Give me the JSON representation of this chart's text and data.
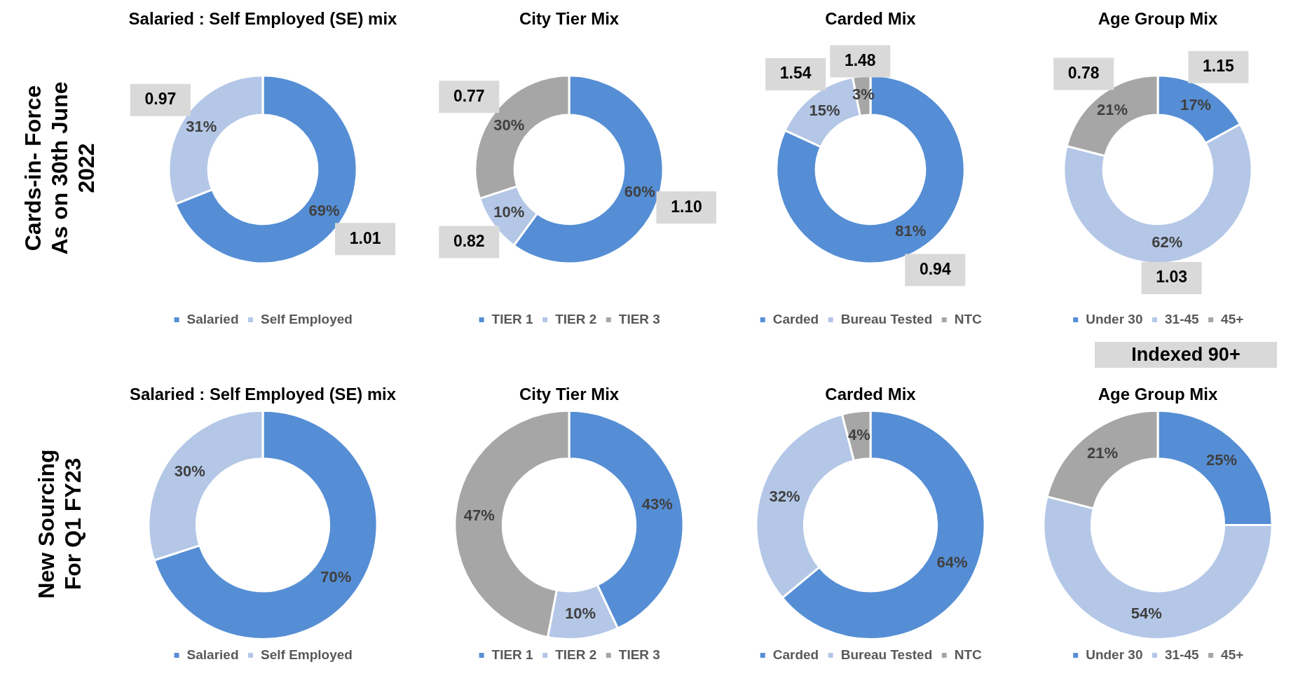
{
  "chart_data": [
    {
      "type": "donut",
      "title": "Salaried : Self Employed (SE) mix",
      "ylabel": "Cards-in- Force As on 30th June 2022",
      "categories": [
        "Salaried",
        "Self Employed"
      ],
      "values": [
        69,
        31
      ],
      "colors": [
        "#558ed5",
        "#b4c7e7"
      ],
      "value_labels": [
        "69%",
        "31%"
      ],
      "legend": "bottom",
      "annotations": [
        "1.01",
        "0.97"
      ]
    },
    {
      "type": "donut",
      "title": "City Tier Mix",
      "categories": [
        "TIER 1",
        "TIER 2",
        "TIER 3"
      ],
      "values": [
        60,
        10,
        30
      ],
      "colors": [
        "#558ed5",
        "#b4c7e7",
        "#a6a6a6"
      ],
      "value_labels": [
        "60%",
        "10%",
        "30%"
      ],
      "legend": "bottom",
      "annotations": [
        "1.10",
        "0.82",
        "0.77"
      ]
    },
    {
      "type": "donut",
      "title": "Carded Mix",
      "categories": [
        "Carded",
        "Bureau Tested",
        "NTC"
      ],
      "values": [
        81,
        15,
        3
      ],
      "colors": [
        "#558ed5",
        "#b4c7e7",
        "#a6a6a6"
      ],
      "value_labels": [
        "81%",
        "15%",
        "3%"
      ],
      "legend": "bottom",
      "annotations": [
        "0.94",
        "1.54",
        "1.48"
      ]
    },
    {
      "type": "donut",
      "title": "Age Group Mix",
      "subtitle": "Indexed 90+",
      "categories": [
        "Under 30",
        "31-45",
        "45+"
      ],
      "values": [
        17,
        62,
        21
      ],
      "colors": [
        "#558ed5",
        "#b4c7e7",
        "#a6a6a6"
      ],
      "value_labels": [
        "17%",
        "62%",
        "21%"
      ],
      "legend": "bottom",
      "annotations": [
        "1.15",
        "1.03",
        "0.78"
      ]
    },
    {
      "type": "donut",
      "title": "Salaried : Self Employed (SE) mix",
      "ylabel": "New Sourcing For Q1 FY23",
      "categories": [
        "Salaried",
        "Self Employed"
      ],
      "values": [
        70,
        30
      ],
      "colors": [
        "#558ed5",
        "#b4c7e7"
      ],
      "value_labels": [
        "70%",
        "30%"
      ],
      "legend": "bottom"
    },
    {
      "type": "donut",
      "title": "City Tier Mix",
      "categories": [
        "TIER 1",
        "TIER 2",
        "TIER 3"
      ],
      "values": [
        43,
        10,
        47
      ],
      "colors": [
        "#558ed5",
        "#b4c7e7",
        "#a6a6a6"
      ],
      "value_labels": [
        "43%",
        "10%",
        "47%"
      ],
      "legend": "bottom"
    },
    {
      "type": "donut",
      "title": "Carded Mix",
      "categories": [
        "Carded",
        "Bureau Tested",
        "NTC"
      ],
      "values": [
        64,
        32,
        4
      ],
      "colors": [
        "#558ed5",
        "#b4c7e7",
        "#a6a6a6"
      ],
      "value_labels": [
        "64%",
        "32%",
        "4%"
      ],
      "legend": "bottom"
    },
    {
      "type": "donut",
      "title": "Age Group Mix",
      "categories": [
        "Under 30",
        "31-45",
        "45+"
      ],
      "values": [
        25,
        54,
        21
      ],
      "colors": [
        "#558ed5",
        "#b4c7e7",
        "#a6a6a6"
      ],
      "value_labels": [
        "25%",
        "54%",
        "21%"
      ],
      "legend": "bottom"
    }
  ]
}
